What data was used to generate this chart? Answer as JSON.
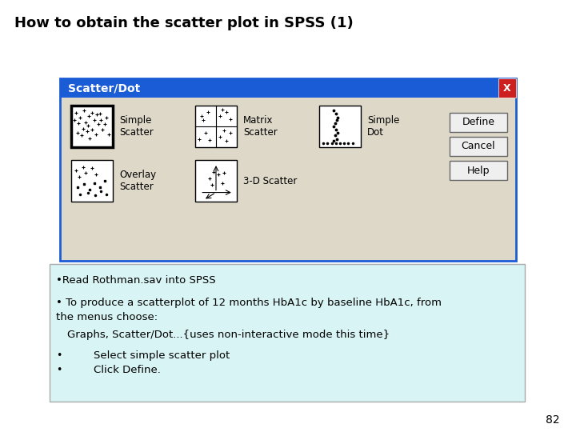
{
  "title": "How to obtain the scatter plot in SPSS (1)",
  "title_fontsize": 13,
  "title_fontweight": "bold",
  "bg_color": "#ffffff",
  "dialog_title": "Scatter/Dot",
  "dialog_title_bar_color": "#1a5cd6",
  "dialog_title_text_color": "#ffffff",
  "dialog_bg_color": "#ddd8c8",
  "dialog_border_color": "#1a5cd6",
  "buttons": [
    "Define",
    "Cancel",
    "Help"
  ],
  "text_box_bg": "#d8f4f4",
  "text_box_border": "#aaaaaa",
  "page_number": "82",
  "font_family": "Arial"
}
